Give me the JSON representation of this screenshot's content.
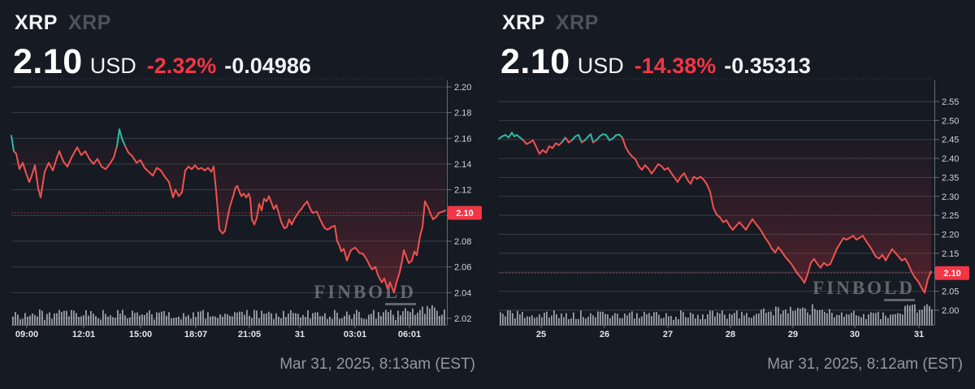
{
  "colors": {
    "background": "#161a23",
    "line_down": "#f0524f",
    "line_up": "#2fbaa6",
    "accent_red": "#f23645",
    "chip_bg": "#f23645",
    "chip_text": "#ffffff",
    "grid": "rgba(197,203,216,0.20)",
    "axis": "rgba(197,203,216,0.45)",
    "tick_text": "#ced1d8",
    "x_tick_text": "#e3e5e9",
    "volume_bar": "rgba(206,210,219,0.72)",
    "watermark": "#75787f",
    "secondary_text": "#4e525b",
    "muted_text": "#94979e"
  },
  "chart_data": [
    {
      "type": "line",
      "title": "XRP intraday price chart (24h)",
      "symbol": "XRP",
      "symbol_secondary": "XRP",
      "price": "2.10",
      "currency": "USD",
      "change_pct": "-2.32%",
      "change_abs": "-0.04986",
      "timestamp": "Mar 31, 2025, 8:13am (EST)",
      "watermark_main": "FINBO",
      "watermark_underlined": "LD",
      "ylim": [
        2.02,
        2.2
      ],
      "y_ticks": [
        "2.20",
        "2.18",
        "2.16",
        "2.14",
        "2.12",
        "2.10",
        "2.08",
        "2.06",
        "2.04",
        "2.02"
      ],
      "x_ticks": [
        {
          "label": "09:00",
          "x": 33
        },
        {
          "label": "12:01",
          "x": 103
        },
        {
          "label": "15:00",
          "x": 173
        },
        {
          "label": "18:07",
          "x": 241
        },
        {
          "label": "21:05",
          "x": 307
        },
        {
          "label": "31",
          "x": 369
        },
        {
          "label": "03:01",
          "x": 437
        },
        {
          "label": "06:01",
          "x": 504
        }
      ],
      "baseline": 2.1555,
      "marker_value": 2.102,
      "marker_label": "2.10",
      "grid": true,
      "legend": false,
      "points": [
        [
          14,
          2.162
        ],
        [
          17,
          2.15
        ],
        [
          20,
          2.148
        ],
        [
          24,
          2.136
        ],
        [
          28,
          2.141
        ],
        [
          32,
          2.133
        ],
        [
          36,
          2.126
        ],
        [
          39,
          2.131
        ],
        [
          43,
          2.139
        ],
        [
          47,
          2.121
        ],
        [
          50,
          2.114
        ],
        [
          55,
          2.134
        ],
        [
          60,
          2.141
        ],
        [
          65,
          2.135
        ],
        [
          70,
          2.145
        ],
        [
          73,
          2.15
        ],
        [
          78,
          2.142
        ],
        [
          83,
          2.138
        ],
        [
          88,
          2.145
        ],
        [
          95,
          2.153
        ],
        [
          100,
          2.147
        ],
        [
          105,
          2.15
        ],
        [
          110,
          2.144
        ],
        [
          115,
          2.14
        ],
        [
          120,
          2.144
        ],
        [
          125,
          2.138
        ],
        [
          130,
          2.136
        ],
        [
          135,
          2.14
        ],
        [
          140,
          2.145
        ],
        [
          144,
          2.154
        ],
        [
          147,
          2.167
        ],
        [
          150,
          2.16
        ],
        [
          154,
          2.154
        ],
        [
          158,
          2.149
        ],
        [
          163,
          2.146
        ],
        [
          168,
          2.141
        ],
        [
          173,
          2.143
        ],
        [
          178,
          2.137
        ],
        [
          183,
          2.134
        ],
        [
          188,
          2.131
        ],
        [
          193,
          2.137
        ],
        [
          198,
          2.135
        ],
        [
          203,
          2.13
        ],
        [
          208,
          2.126
        ],
        [
          213,
          2.114
        ],
        [
          216,
          2.12
        ],
        [
          220,
          2.115
        ],
        [
          224,
          2.118
        ],
        [
          228,
          2.135
        ],
        [
          232,
          2.138
        ],
        [
          236,
          2.136
        ],
        [
          240,
          2.139
        ],
        [
          244,
          2.136
        ],
        [
          248,
          2.137
        ],
        [
          252,
          2.135
        ],
        [
          256,
          2.137
        ],
        [
          260,
          2.134
        ],
        [
          263,
          2.138
        ],
        [
          266,
          2.119
        ],
        [
          270,
          2.089
        ],
        [
          274,
          2.086
        ],
        [
          277,
          2.088
        ],
        [
          280,
          2.098
        ],
        [
          283,
          2.107
        ],
        [
          287,
          2.115
        ],
        [
          290,
          2.122
        ],
        [
          292,
          2.123
        ],
        [
          295,
          2.118
        ],
        [
          297,
          2.115
        ],
        [
          300,
          2.117
        ],
        [
          303,
          2.114
        ],
        [
          306,
          2.117
        ],
        [
          308,
          2.113
        ],
        [
          310,
          2.097
        ],
        [
          313,
          2.093
        ],
        [
          316,
          2.098
        ],
        [
          319,
          2.109
        ],
        [
          322,
          2.104
        ],
        [
          325,
          2.113
        ],
        [
          328,
          2.111
        ],
        [
          331,
          2.115
        ],
        [
          334,
          2.11
        ],
        [
          337,
          2.105
        ],
        [
          340,
          2.108
        ],
        [
          343,
          2.102
        ],
        [
          346,
          2.095
        ],
        [
          350,
          2.09
        ],
        [
          353,
          2.091
        ],
        [
          356,
          2.097
        ],
        [
          359,
          2.093
        ],
        [
          362,
          2.097
        ],
        [
          365,
          2.1
        ],
        [
          368,
          2.103
        ],
        [
          371,
          2.105
        ],
        [
          374,
          2.108
        ],
        [
          378,
          2.111
        ],
        [
          382,
          2.105
        ],
        [
          385,
          2.102
        ],
        [
          390,
          2.103
        ],
        [
          394,
          2.097
        ],
        [
          397,
          2.093
        ],
        [
          400,
          2.09
        ],
        [
          403,
          2.089
        ],
        [
          406,
          2.09
        ],
        [
          408,
          2.091
        ],
        [
          412,
          2.092
        ],
        [
          415,
          2.08
        ],
        [
          418,
          2.076
        ],
        [
          420,
          2.072
        ],
        [
          423,
          2.074
        ],
        [
          427,
          2.065
        ],
        [
          430,
          2.07
        ],
        [
          432,
          2.073
        ],
        [
          437,
          2.075
        ],
        [
          440,
          2.073
        ],
        [
          442,
          2.071
        ],
        [
          447,
          2.07
        ],
        [
          452,
          2.065
        ],
        [
          455,
          2.061
        ],
        [
          458,
          2.058
        ],
        [
          462,
          2.06
        ],
        [
          465,
          2.054
        ],
        [
          468,
          2.05
        ],
        [
          470,
          2.048
        ],
        [
          473,
          2.051
        ],
        [
          477,
          2.043
        ],
        [
          480,
          2.048
        ],
        [
          483,
          2.043
        ],
        [
          485,
          2.04
        ],
        [
          488,
          2.048
        ],
        [
          492,
          2.056
        ],
        [
          495,
          2.065
        ],
        [
          497,
          2.073
        ],
        [
          500,
          2.068
        ],
        [
          503,
          2.063
        ],
        [
          507,
          2.065
        ],
        [
          510,
          2.072
        ],
        [
          513,
          2.069
        ],
        [
          517,
          2.084
        ],
        [
          520,
          2.091
        ],
        [
          523,
          2.111
        ],
        [
          527,
          2.106
        ],
        [
          530,
          2.101
        ],
        [
          533,
          2.097
        ],
        [
          537,
          2.099
        ],
        [
          540,
          2.102
        ],
        [
          545,
          2.103
        ],
        [
          548,
          2.104
        ]
      ],
      "volume": {
        "seed": 3,
        "base": 6,
        "variation": 13,
        "peaks": [
          {
            "from": 0.9,
            "to": 1.0,
            "boost": 6
          }
        ]
      }
    },
    {
      "type": "line",
      "title": "XRP 7-day price chart",
      "symbol": "XRP",
      "symbol_secondary": "XRP",
      "price": "2.10",
      "currency": "USD",
      "change_pct": "-14.38%",
      "change_abs": "-0.35313",
      "timestamp": "Mar 31, 2025, 8:12am (EST)",
      "watermark_main": "FINBO",
      "watermark_underlined": "LD",
      "ylim": [
        2.0,
        2.55
      ],
      "y_ticks": [
        "2.55",
        "2.50",
        "2.45",
        "2.40",
        "2.35",
        "2.30",
        "2.25",
        "2.20",
        "2.15",
        "2.10",
        "2.05",
        "2.00"
      ],
      "x_ticks": [
        {
          "label": "25",
          "x": 66
        },
        {
          "label": "26",
          "x": 144
        },
        {
          "label": "27",
          "x": 222
        },
        {
          "label": "28",
          "x": 299
        },
        {
          "label": "29",
          "x": 376
        },
        {
          "label": "30",
          "x": 452
        },
        {
          "label": "31",
          "x": 531
        }
      ],
      "baseline": 2.4495,
      "marker_value": 2.098,
      "marker_label": "2.10",
      "grid": true,
      "legend": false,
      "points": [
        [
          14,
          2.452
        ],
        [
          18,
          2.458
        ],
        [
          22,
          2.462
        ],
        [
          26,
          2.455
        ],
        [
          30,
          2.468
        ],
        [
          33,
          2.458
        ],
        [
          36,
          2.462
        ],
        [
          40,
          2.455
        ],
        [
          44,
          2.448
        ],
        [
          48,
          2.438
        ],
        [
          52,
          2.442
        ],
        [
          56,
          2.448
        ],
        [
          60,
          2.43
        ],
        [
          64,
          2.412
        ],
        [
          68,
          2.422
        ],
        [
          72,
          2.415
        ],
        [
          76,
          2.432
        ],
        [
          80,
          2.427
        ],
        [
          84,
          2.44
        ],
        [
          88,
          2.435
        ],
        [
          92,
          2.444
        ],
        [
          96,
          2.455
        ],
        [
          100,
          2.442
        ],
        [
          104,
          2.448
        ],
        [
          108,
          2.458
        ],
        [
          112,
          2.462
        ],
        [
          116,
          2.442
        ],
        [
          120,
          2.448
        ],
        [
          124,
          2.458
        ],
        [
          127,
          2.464
        ],
        [
          130,
          2.442
        ],
        [
          134,
          2.448
        ],
        [
          138,
          2.458
        ],
        [
          142,
          2.464
        ],
        [
          146,
          2.462
        ],
        [
          150,
          2.448
        ],
        [
          154,
          2.452
        ],
        [
          158,
          2.461
        ],
        [
          162,
          2.463
        ],
        [
          166,
          2.455
        ],
        [
          170,
          2.43
        ],
        [
          174,
          2.415
        ],
        [
          178,
          2.405
        ],
        [
          182,
          2.398
        ],
        [
          186,
          2.38
        ],
        [
          190,
          2.37
        ],
        [
          194,
          2.382
        ],
        [
          198,
          2.373
        ],
        [
          202,
          2.36
        ],
        [
          206,
          2.372
        ],
        [
          210,
          2.385
        ],
        [
          214,
          2.38
        ],
        [
          218,
          2.37
        ],
        [
          222,
          2.375
        ],
        [
          226,
          2.362
        ],
        [
          230,
          2.35
        ],
        [
          234,
          2.338
        ],
        [
          238,
          2.352
        ],
        [
          242,
          2.361
        ],
        [
          246,
          2.344
        ],
        [
          250,
          2.333
        ],
        [
          254,
          2.352
        ],
        [
          258,
          2.346
        ],
        [
          262,
          2.352
        ],
        [
          266,
          2.344
        ],
        [
          270,
          2.332
        ],
        [
          274,
          2.312
        ],
        [
          278,
          2.27
        ],
        [
          282,
          2.252
        ],
        [
          286,
          2.245
        ],
        [
          290,
          2.232
        ],
        [
          294,
          2.237
        ],
        [
          298,
          2.222
        ],
        [
          302,
          2.212
        ],
        [
          306,
          2.222
        ],
        [
          310,
          2.232
        ],
        [
          314,
          2.222
        ],
        [
          318,
          2.212
        ],
        [
          322,
          2.226
        ],
        [
          326,
          2.24
        ],
        [
          330,
          2.228
        ],
        [
          334,
          2.218
        ],
        [
          338,
          2.205
        ],
        [
          342,
          2.19
        ],
        [
          346,
          2.178
        ],
        [
          350,
          2.162
        ],
        [
          354,
          2.152
        ],
        [
          358,
          2.166
        ],
        [
          362,
          2.155
        ],
        [
          366,
          2.142
        ],
        [
          370,
          2.132
        ],
        [
          374,
          2.122
        ],
        [
          378,
          2.108
        ],
        [
          382,
          2.095
        ],
        [
          386,
          2.085
        ],
        [
          390,
          2.072
        ],
        [
          394,
          2.095
        ],
        [
          398,
          2.125
        ],
        [
          402,
          2.135
        ],
        [
          406,
          2.122
        ],
        [
          410,
          2.112
        ],
        [
          414,
          2.125
        ],
        [
          418,
          2.118
        ],
        [
          422,
          2.122
        ],
        [
          426,
          2.142
        ],
        [
          430,
          2.162
        ],
        [
          434,
          2.176
        ],
        [
          438,
          2.19
        ],
        [
          442,
          2.186
        ],
        [
          446,
          2.191
        ],
        [
          450,
          2.196
        ],
        [
          454,
          2.186
        ],
        [
          458,
          2.191
        ],
        [
          462,
          2.196
        ],
        [
          466,
          2.182
        ],
        [
          470,
          2.17
        ],
        [
          474,
          2.156
        ],
        [
          478,
          2.141
        ],
        [
          482,
          2.136
        ],
        [
          486,
          2.146
        ],
        [
          490,
          2.131
        ],
        [
          494,
          2.146
        ],
        [
          498,
          2.161
        ],
        [
          502,
          2.151
        ],
        [
          506,
          2.141
        ],
        [
          510,
          2.131
        ],
        [
          514,
          2.136
        ],
        [
          518,
          2.121
        ],
        [
          522,
          2.101
        ],
        [
          526,
          2.086
        ],
        [
          530,
          2.076
        ],
        [
          534,
          2.06
        ],
        [
          538,
          2.046
        ],
        [
          542,
          2.082
        ],
        [
          546,
          2.102
        ]
      ],
      "volume": {
        "seed": 7,
        "base": 6,
        "variation": 12,
        "peaks": [
          {
            "from": 0.6,
            "to": 0.76,
            "boost": 9
          },
          {
            "from": 0.93,
            "to": 1.0,
            "boost": 11
          }
        ]
      }
    }
  ]
}
